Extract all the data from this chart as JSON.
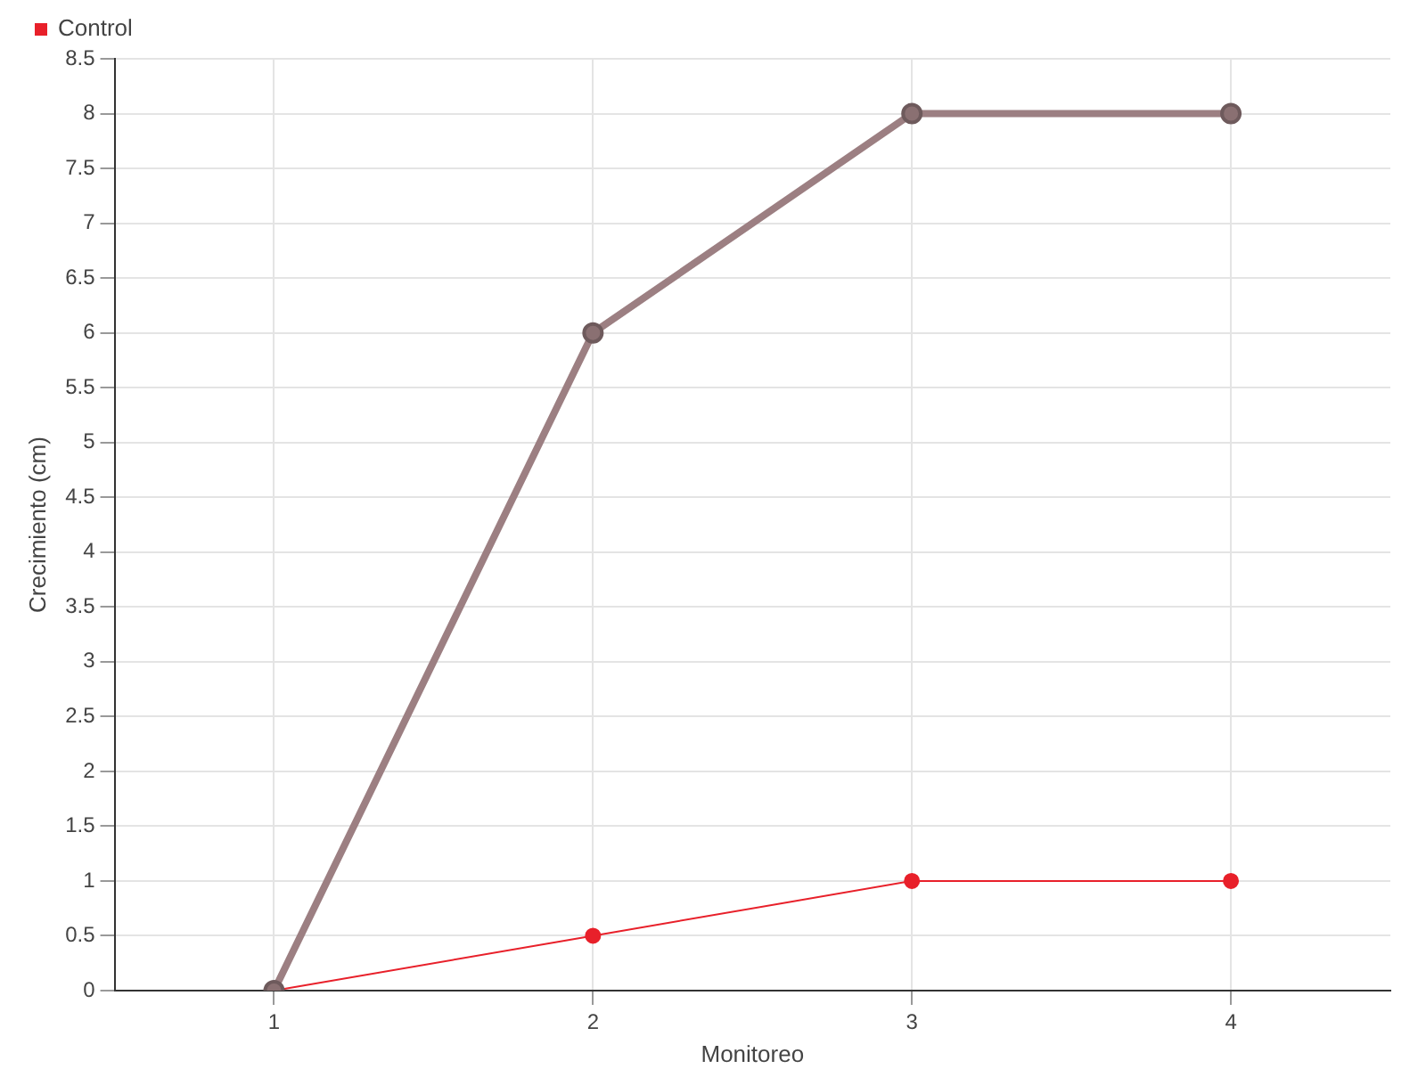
{
  "chart_data": {
    "type": "line",
    "xlabel": "Monitoreo",
    "ylabel": "Crecimiento (cm)",
    "categories": [
      "1",
      "2",
      "3",
      "4"
    ],
    "series": [
      {
        "color": "#9c7f82",
        "values": [
          0,
          6,
          8,
          8
        ]
      },
      {
        "name": "Control",
        "color": "#e8202a",
        "values": [
          0,
          0.5,
          1,
          1
        ]
      }
    ],
    "ylim": [
      0,
      8.5
    ],
    "yticks": [
      0,
      0.5,
      1,
      1.5,
      2,
      2.5,
      3,
      3.5,
      4,
      4.5,
      5,
      5.5,
      6,
      6.5,
      7,
      7.5,
      8,
      8.5
    ],
    "grid": true,
    "legend": "top left",
    "marker": "circle",
    "line_style": "solid"
  }
}
